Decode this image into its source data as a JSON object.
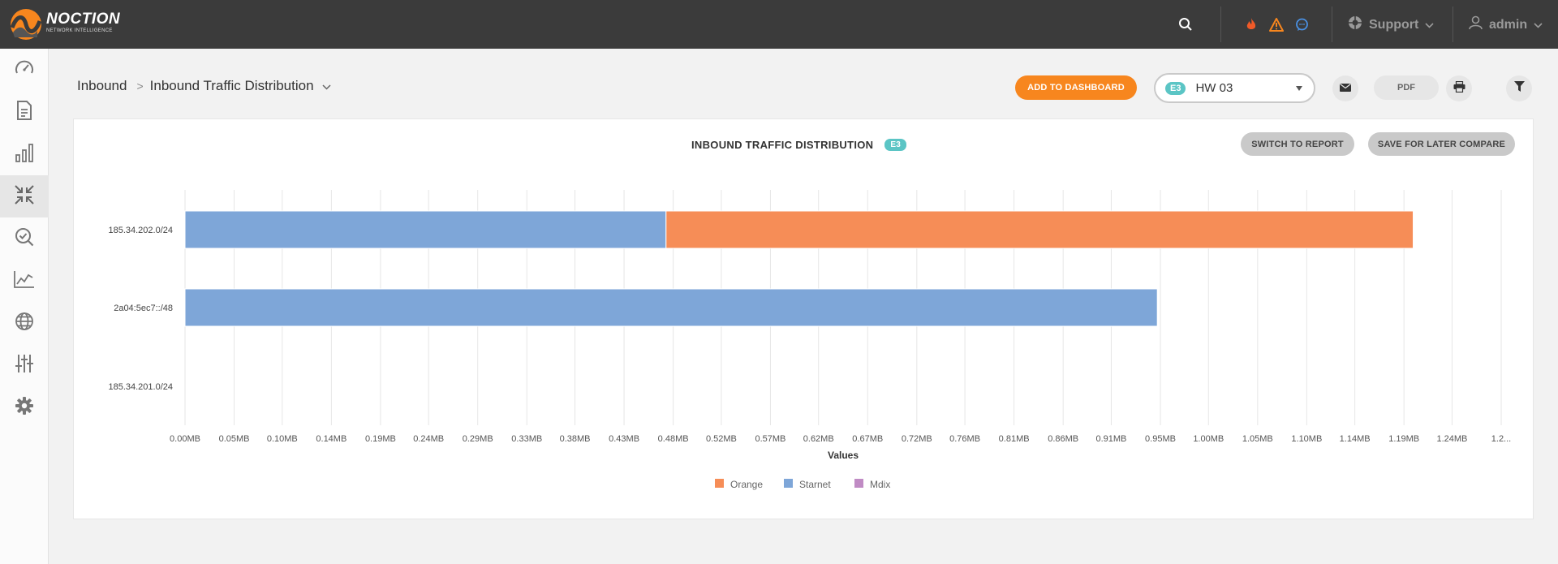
{
  "brand": {
    "name": "NOCTION",
    "tagline": "NETWORK INTELLIGENCE",
    "logo_icon": "noction-logo-icon"
  },
  "topbar": {
    "search_icon": "search-icon",
    "alerts": [
      {
        "icon": "fire-icon",
        "color": "#f05a28"
      },
      {
        "icon": "warning-icon",
        "color": "#f7861e"
      },
      {
        "icon": "chat-icon",
        "color": "#4a90e2"
      }
    ],
    "support_label": "Support",
    "user_label": "admin"
  },
  "sidebar": {
    "items": [
      {
        "icon": "dashboard-gauge-icon",
        "active": false
      },
      {
        "icon": "document-icon",
        "active": false
      },
      {
        "icon": "bar-chart-icon",
        "active": false
      },
      {
        "icon": "inbound-arrows-icon",
        "active": true
      },
      {
        "icon": "search-check-icon",
        "active": false
      },
      {
        "icon": "line-chart-icon",
        "active": false
      },
      {
        "icon": "globe-icon",
        "active": false
      },
      {
        "icon": "sliders-icon",
        "active": false
      },
      {
        "icon": "gear-icon",
        "active": false
      }
    ]
  },
  "breadcrumb": {
    "parent": "Inbound",
    "separator": ">",
    "current": "Inbound Traffic Distribution"
  },
  "toolbar": {
    "add_to_dashboard": "ADD TO DASHBOARD",
    "platform_badge": "E3",
    "platform_value": "HW 03",
    "email_icon": "envelope-icon",
    "pdf_label": "PDF",
    "print_icon": "printer-icon",
    "filter_icon": "filter-icon"
  },
  "card": {
    "title": "INBOUND TRAFFIC DISTRIBUTION",
    "badge": "E3",
    "switch_to_report": "SWITCH TO REPORT",
    "save_for_later": "SAVE FOR LATER COMPARE"
  },
  "chart_data": {
    "type": "bar",
    "orientation": "horizontal",
    "stacked": true,
    "categories": [
      "185.34.202.0/24",
      "2a04:5ec7::/48",
      "185.34.201.0/24"
    ],
    "series": [
      {
        "name": "Starnet",
        "color": "#7ea6d8",
        "values": [
          0.47,
          0.95,
          0
        ]
      },
      {
        "name": "Orange",
        "color": "#f68d57",
        "values": [
          0.73,
          0,
          0
        ]
      },
      {
        "name": "Mdix",
        "color": "#c08bc4",
        "values": [
          0,
          0,
          0
        ]
      }
    ],
    "legend_order": [
      "Orange",
      "Starnet",
      "Mdix"
    ],
    "legend_position": "bottom",
    "xlabel": "Values",
    "xlim": [
      0,
      1.286
    ],
    "xticks": [
      0,
      0.048,
      0.095,
      0.143,
      0.191,
      0.238,
      0.286,
      0.334,
      0.381,
      0.429,
      0.477,
      0.524,
      0.572,
      0.619,
      0.667,
      0.715,
      0.762,
      0.81,
      0.858,
      0.905,
      0.953,
      1.0,
      1.048,
      1.096,
      1.143,
      1.191,
      1.238,
      1.286
    ],
    "xtick_labels": [
      "0.00MB",
      "0.05MB",
      "0.10MB",
      "0.14MB",
      "0.19MB",
      "0.24MB",
      "0.29MB",
      "0.33MB",
      "0.38MB",
      "0.43MB",
      "0.48MB",
      "0.52MB",
      "0.57MB",
      "0.62MB",
      "0.67MB",
      "0.72MB",
      "0.76MB",
      "0.81MB",
      "0.86MB",
      "0.91MB",
      "0.95MB",
      "1.00MB",
      "1.05MB",
      "1.10MB",
      "1.14MB",
      "1.19MB",
      "1.24MB",
      "1.2..."
    ],
    "grid": true
  }
}
